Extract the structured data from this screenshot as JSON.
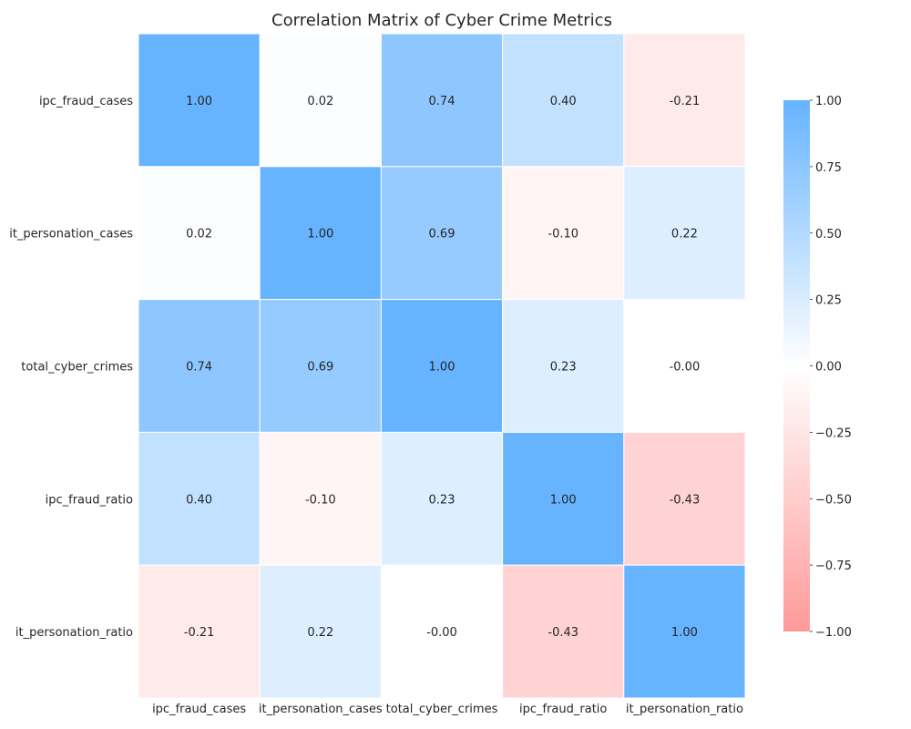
{
  "chart_data": {
    "type": "heatmap",
    "title": "Correlation Matrix of Cyber Crime Metrics",
    "rows": [
      "ipc_fraud_cases",
      "it_personation_cases",
      "total_cyber_crimes",
      "ipc_fraud_ratio",
      "it_personation_ratio"
    ],
    "columns": [
      "ipc_fraud_cases",
      "it_personation_cases",
      "total_cyber_crimes",
      "ipc_fraud_ratio",
      "it_personation_ratio"
    ],
    "values": [
      [
        1.0,
        0.02,
        0.74,
        0.4,
        -0.21
      ],
      [
        0.02,
        1.0,
        0.69,
        -0.1,
        0.22
      ],
      [
        0.74,
        0.69,
        1.0,
        0.23,
        -0.0
      ],
      [
        0.4,
        -0.1,
        0.23,
        1.0,
        -0.43
      ],
      [
        -0.21,
        0.22,
        -0.0,
        -0.43,
        1.0
      ]
    ],
    "value_labels": [
      [
        "1.00",
        "0.02",
        "0.74",
        "0.40",
        "-0.21"
      ],
      [
        "0.02",
        "1.00",
        "0.69",
        "-0.10",
        "0.22"
      ],
      [
        "0.74",
        "0.69",
        "1.00",
        "0.23",
        "-0.00"
      ],
      [
        "0.40",
        "-0.10",
        "0.23",
        "1.00",
        "-0.43"
      ],
      [
        "-0.21",
        "0.22",
        "-0.00",
        "-0.43",
        "1.00"
      ]
    ],
    "colorbar": {
      "range": [
        -1.0,
        1.0
      ],
      "ticks": [
        1.0,
        0.75,
        0.5,
        0.25,
        0.0,
        -0.25,
        -0.5,
        -0.75,
        -1.0
      ],
      "tick_labels": [
        "1.00",
        "0.75",
        "0.50",
        "0.25",
        "0.00",
        "−0.25",
        "−0.50",
        "−0.75",
        "−1.00"
      ],
      "colors": {
        "negative": "#ff9999",
        "zero": "#ffffff",
        "positive": "#66b3ff"
      },
      "placement": "right"
    },
    "grid": false
  }
}
